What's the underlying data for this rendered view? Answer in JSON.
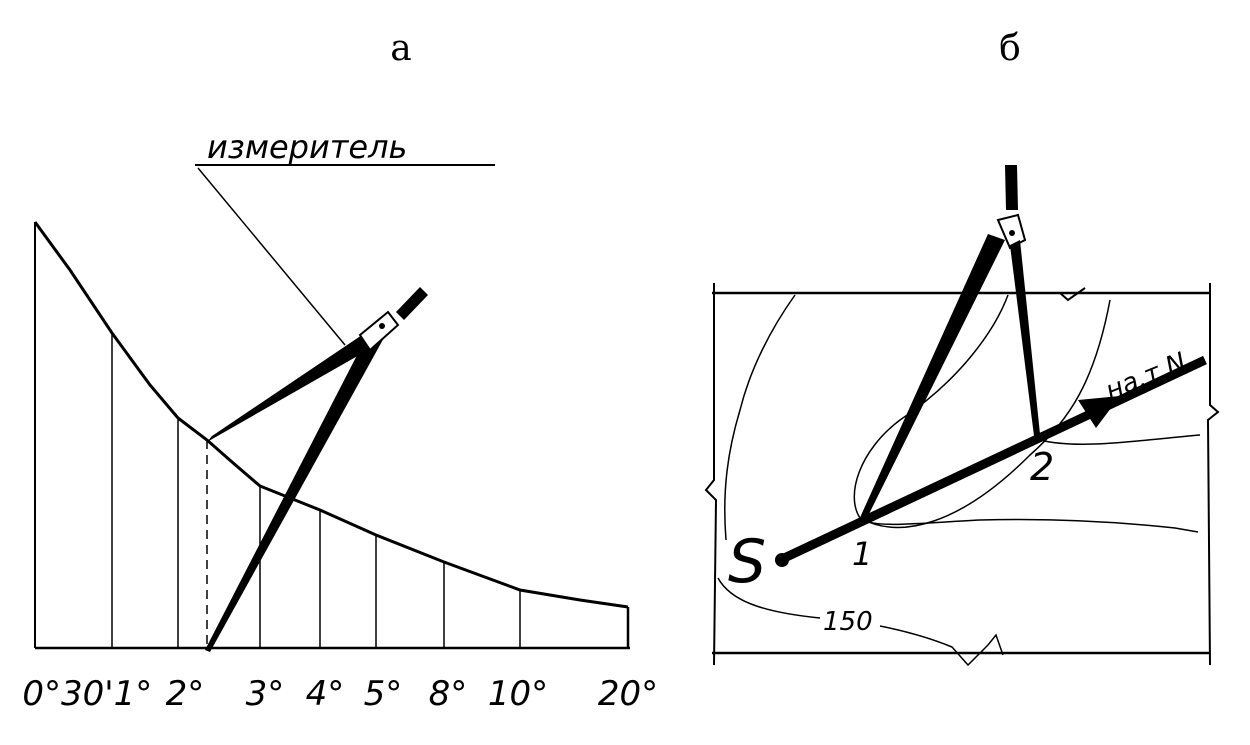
{
  "panel_a": {
    "letter": "а",
    "caption": "измеритель",
    "scale_labels": [
      "0°30'",
      "1°",
      "2°",
      "3°",
      "4°",
      "5°",
      "8°",
      "10°",
      "20°"
    ]
  },
  "panel_b": {
    "letter": "б",
    "start_label": "S",
    "point1_label": "1",
    "point2_label": "2",
    "direction_label": "на.т.N",
    "contour_label": "150"
  }
}
